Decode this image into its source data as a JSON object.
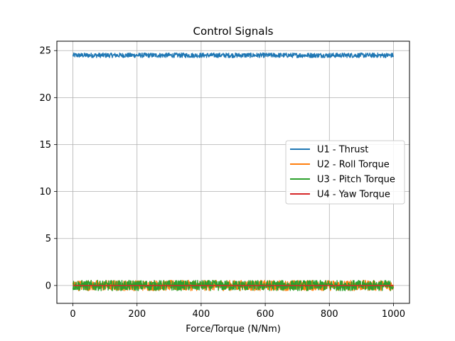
{
  "chart_data": {
    "type": "line",
    "title": "Control Signals",
    "xlabel": "Force/Torque (N/Nm)",
    "ylabel": "",
    "xlim": [
      -50,
      1050
    ],
    "ylim": [
      -1.9,
      26.0
    ],
    "x_range": [
      0,
      1000
    ],
    "xticks": [
      0,
      200,
      400,
      600,
      800,
      1000
    ],
    "yticks": [
      0,
      5,
      10,
      15,
      20,
      25
    ],
    "grid": true,
    "legend_position": "center-right",
    "series": [
      {
        "name": "U1 - Thrust",
        "color": "#1f77b4",
        "mean": 24.5,
        "noise_amplitude": 0.25
      },
      {
        "name": "U2 - Roll Torque",
        "color": "#ff7f0e",
        "mean": 0.0,
        "noise_amplitude": 0.55
      },
      {
        "name": "U3 - Pitch Torque",
        "color": "#2ca02c",
        "mean": 0.0,
        "noise_amplitude": 0.55
      },
      {
        "name": "U4 - Yaw Torque",
        "color": "#d62728",
        "mean": 0.0,
        "noise_amplitude": 0.0
      }
    ]
  }
}
